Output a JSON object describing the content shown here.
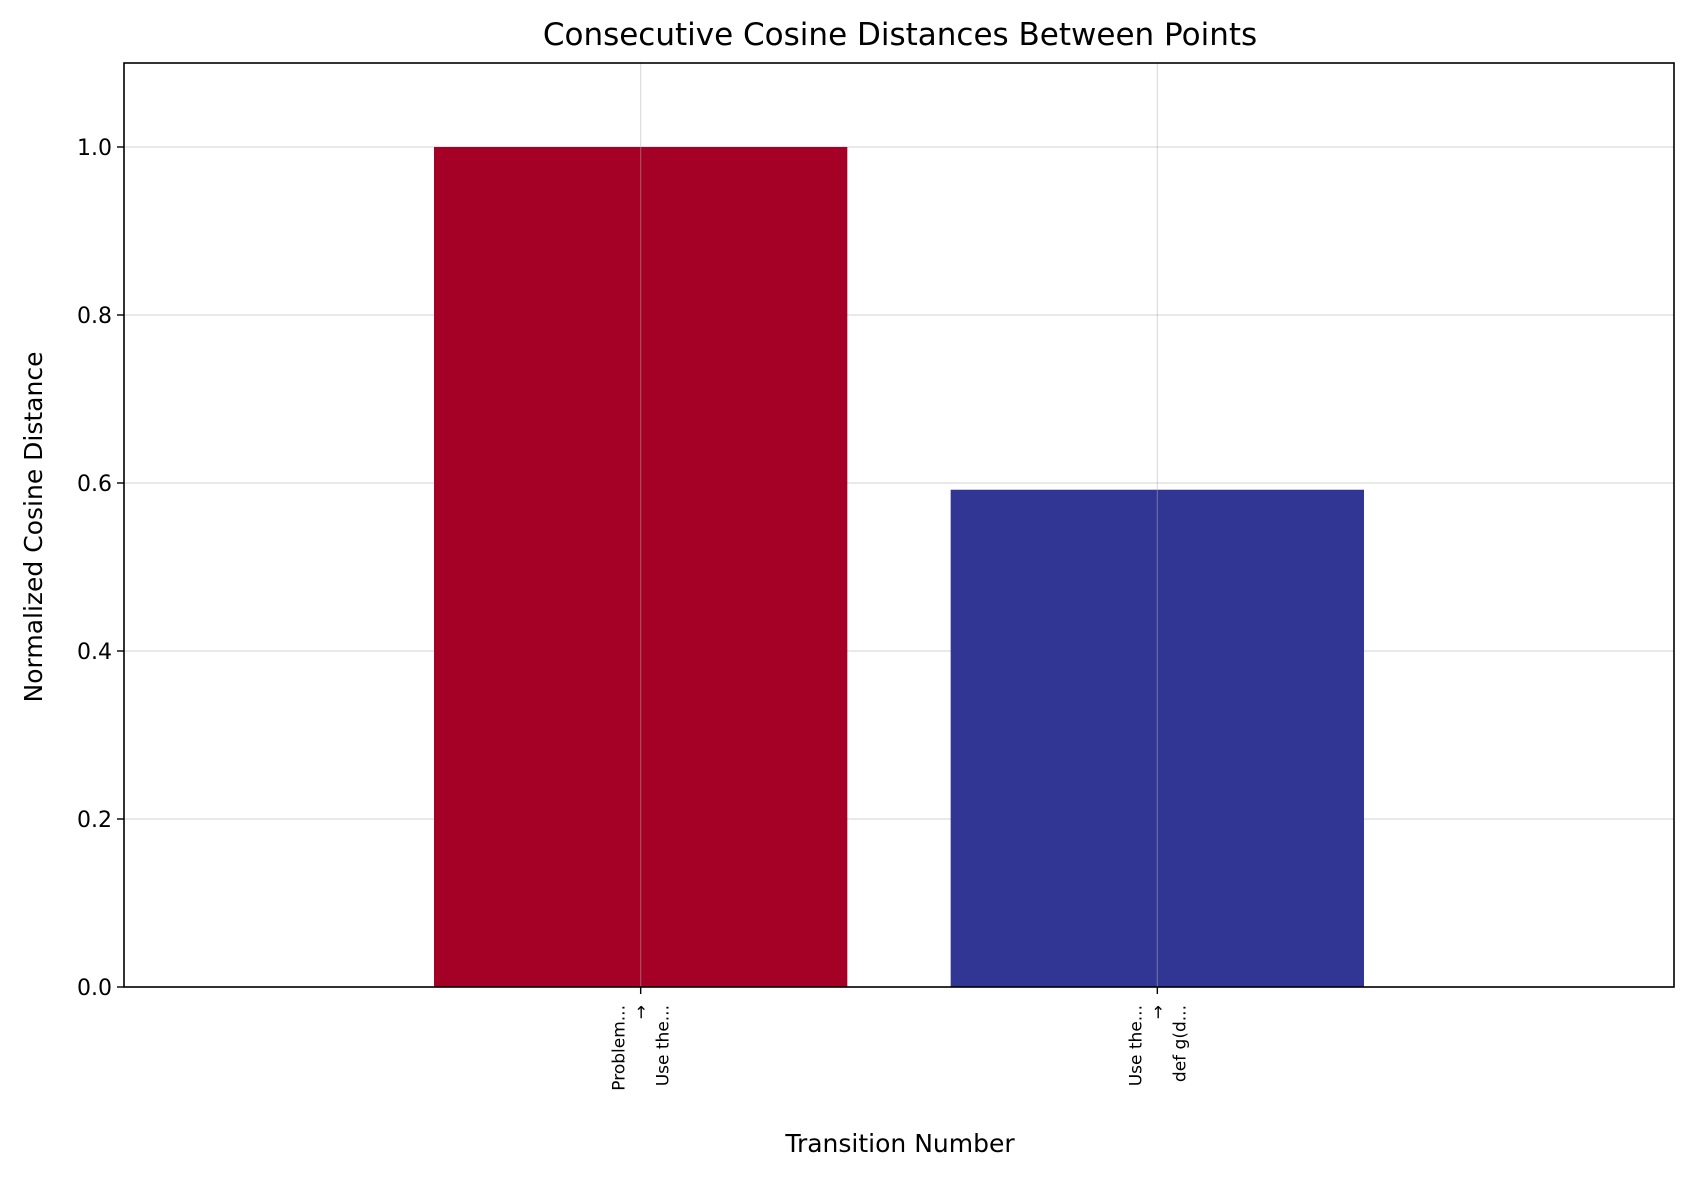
{
  "chart_data": {
    "type": "bar",
    "title": "Consecutive Cosine Distances Between Points",
    "xlabel": "Transition Number",
    "ylabel": "Normalized Cosine Distance",
    "categories": [
      [
        "Problem...",
        "→",
        "Use the..."
      ],
      [
        "Use the...",
        "→",
        "def g(d..."
      ]
    ],
    "values": [
      1.0,
      0.592
    ],
    "colors": [
      "#a50026",
      "#313695"
    ],
    "ylim": [
      0,
      1.1
    ],
    "xlim": [
      -1.0,
      2.0
    ],
    "yticks": [
      0.0,
      0.2,
      0.4,
      0.6,
      0.8,
      1.0
    ],
    "ytick_labels": [
      "0.0",
      "0.2",
      "0.4",
      "0.6",
      "0.8",
      "1.0"
    ],
    "grid": true
  }
}
